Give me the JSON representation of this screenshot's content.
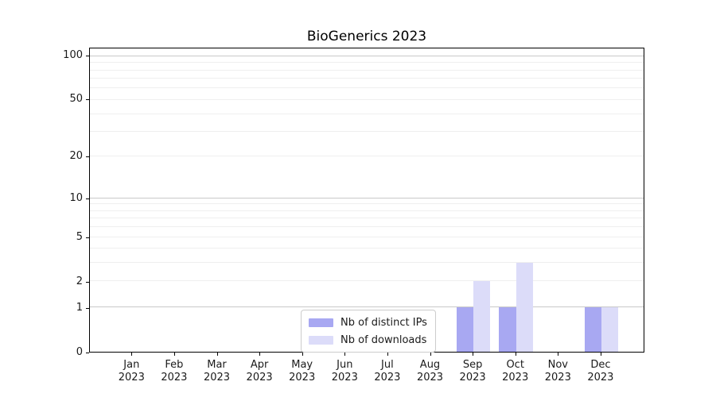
{
  "chart_data": {
    "type": "bar",
    "title": "BioGenerics 2023",
    "xlabel": "",
    "ylabel": "",
    "year_line": "2023",
    "categories": [
      "Jan",
      "Feb",
      "Mar",
      "Apr",
      "May",
      "Jun",
      "Jul",
      "Aug",
      "Sep",
      "Oct",
      "Nov",
      "Dec"
    ],
    "series": [
      {
        "name": "Nb of distinct IPs",
        "color": "#a8a8f2",
        "values": [
          0,
          0,
          0,
          0,
          0,
          0,
          0,
          0,
          1,
          1,
          0,
          1
        ]
      },
      {
        "name": "Nb of downloads",
        "color": "#dcdcf9",
        "values": [
          0,
          0,
          0,
          0,
          0,
          0,
          0,
          0,
          2,
          3,
          0,
          1
        ]
      }
    ],
    "yscale": "log1p",
    "ylim": [
      0,
      113
    ],
    "yticks": [
      {
        "value": 0,
        "label": "0"
      },
      {
        "value": 1,
        "label": "1"
      },
      {
        "value": 2,
        "label": "2"
      },
      {
        "value": 5,
        "label": "5"
      },
      {
        "value": 10,
        "label": "10"
      },
      {
        "value": 20,
        "label": "20"
      },
      {
        "value": 50,
        "label": "50"
      },
      {
        "value": 100,
        "label": "100"
      }
    ],
    "gridlines_major": [
      1,
      10,
      100
    ],
    "gridlines_minor": [
      2,
      3,
      4,
      5,
      6,
      7,
      8,
      9,
      20,
      30,
      40,
      50,
      60,
      70,
      80,
      90
    ],
    "grid": true,
    "legend_position": "lower center inside",
    "colors": {
      "grid_major": "#c9c9c9",
      "grid_minor": "#efefef",
      "spine": "#000000",
      "text": "#1a1a1a"
    }
  }
}
